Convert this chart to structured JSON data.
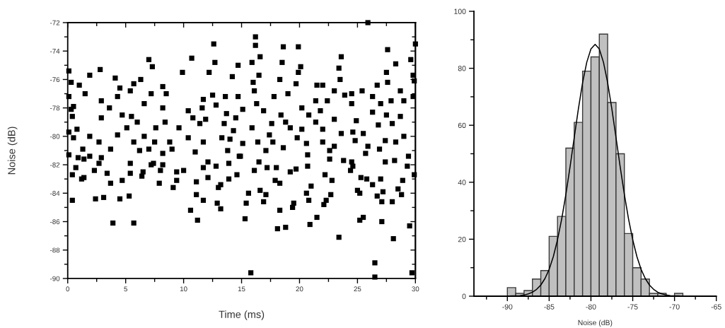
{
  "chart_data": [
    {
      "type": "scatter",
      "xlabel": "Time (ms)",
      "ylabel": "Noise (dB)",
      "color": "#000000",
      "marker": "square",
      "xlim": [
        0,
        30
      ],
      "ylim": [
        -90,
        -72
      ],
      "xticks": [
        0,
        {
          "value": 2.5,
          "label": null
        },
        5,
        {
          "value": 7.5,
          "label": null
        },
        10,
        {
          "value": 12.5,
          "label": null
        },
        15,
        {
          "value": 17.5,
          "label": null
        },
        20,
        {
          "value": 22.5,
          "label": null
        },
        25,
        {
          "value": 27.5,
          "label": null
        },
        30
      ],
      "yticks": [
        -90,
        {
          "value": -89,
          "label": null
        },
        -88,
        {
          "value": -87,
          "label": null
        },
        -86,
        {
          "value": -85,
          "label": null
        },
        -84,
        {
          "value": -83,
          "label": null
        },
        -82,
        {
          "value": -81,
          "label": null
        },
        -80,
        {
          "value": -79,
          "label": null
        },
        -78,
        {
          "value": -77,
          "label": null
        },
        -76,
        {
          "value": -75,
          "label": null
        },
        -74,
        {
          "value": -73,
          "label": null
        },
        -72
      ],
      "x": [
        0.1,
        12.6,
        12.7,
        10.7,
        7.0,
        7.3,
        2.8,
        1.9,
        4.1,
        6.3,
        5.7,
        9.9,
        12.2,
        14.7,
        14.2,
        0.3,
        1.0,
        5.4,
        4.5,
        7.2,
        8.5,
        8.2,
        12.5,
        13.6,
        0.1,
        1.5,
        2.9,
        4.3,
        0.3,
        0.5,
        3.6,
        6.6,
        8.2,
        10.4,
        11.6,
        12.8,
        11.7,
        0.4,
        0.8,
        2.9,
        4.7,
        5.5,
        4.3,
        5.1,
        6.0,
        7.6,
        8.4,
        9.6,
        10.8,
        11.4,
        11.9,
        13.5,
        14.3,
        0.1,
        0.5,
        1.9,
        2.7,
        3.7,
        1.3,
        5.7,
        6.6,
        7.5,
        8.8,
        9.0,
        10.4,
        11.7,
        13.3,
        13.8,
        6.2,
        7.0,
        8.2,
        11.0,
        1.9,
        2.9,
        0.1,
        0.9,
        5.4,
        7.4,
        12.1,
        13.9,
        14.8,
        0.4,
        0.4,
        0.7,
        1.2,
        1.4,
        1.4,
        2.3,
        2.4,
        3.1,
        2.7,
        3.4,
        3.7,
        3.9,
        4.5,
        4.7,
        5.3,
        5.4,
        5.7,
        6.4,
        6.5,
        7.2,
        7.9,
        8.0,
        8.2,
        9.1,
        9.4,
        9.4,
        10.0,
        10.6,
        11.1,
        11.1,
        11.2,
        11.7,
        11.7,
        12.1,
        12.9,
        13.0,
        13.2,
        13.2,
        13.9,
        14.6,
        12.8,
        15.8,
        15.3,
        15.4,
        15.6,
        16.1,
        16.5,
        16.6,
        16.9,
        17.1,
        17.2,
        18.0,
        18.1,
        17.9,
        18.3,
        18.3,
        18.8,
        19.2,
        19.4,
        19.5,
        19.7,
        20.6,
        20.8,
        20.7,
        20.9,
        21.0,
        21.5,
        22.1,
        22.3,
        22.2,
        22.6,
        22.7,
        22.8,
        23.4,
        24.4,
        24.6,
        25.0,
        25.2,
        25.2,
        25.5,
        25.3,
        25.8,
        26.3,
        26.5,
        26.5,
        26.7,
        27.1,
        27.1,
        27.2,
        27.0,
        28.0,
        28.1,
        28.5,
        28.8,
        28.9,
        29.5,
        29.7,
        29.9,
        29.3,
        28.2,
        27.4,
        25.9,
        30.0,
        16.2,
        16.2,
        18.6,
        19.9,
        16.6,
        15.9,
        18.5,
        20.1,
        19.9,
        18.3,
        16.5,
        16.0,
        16.1,
        23.6,
        23.4,
        23.5,
        27.6,
        28.3,
        27.5,
        29.6,
        29.8,
        29.9,
        27.6,
        26.7,
        19.7,
        21.5,
        22.0,
        23.0,
        25.4,
        28.7,
        29.8,
        14.7,
        17.8,
        19.0,
        21.4,
        22.4,
        23.9,
        24.5,
        26.3,
        27.0,
        27.9,
        29.0,
        16.3,
        16.9,
        15.1,
        13.7,
        14.5,
        18.4,
        20.2,
        20.8,
        21.8,
        23.0,
        24.5,
        24.9,
        26.3,
        27.5,
        28.7,
        15.9,
        17.6,
        18.8,
        19.2,
        20.2,
        21.4,
        22.0,
        23.6,
        24.6,
        25.5,
        26.8,
        28.0,
        17.4,
        15.1,
        14.0,
        16.4,
        17.7,
        19.8,
        20.6,
        22.0,
        23.0,
        24.8,
        25.9,
        27.4,
        28.3,
        29.0,
        29.4,
        26.9,
        25.7,
        18.6,
        17.1,
        14.9,
        20.7,
        22.6,
        23.8,
        24.5
      ],
      "values": [
        -75.4,
        -73.5,
        -74.8,
        -74.5,
        -74.6,
        -75.1,
        -75.3,
        -75.7,
        -75.9,
        -76.0,
        -76.3,
        -75.5,
        -75.5,
        -75.0,
        -75.8,
        -76.2,
        -76.4,
        -76.8,
        -76.6,
        -77.0,
        -77.0,
        -76.5,
        -77.1,
        -77.2,
        -77.2,
        -77.0,
        -77.5,
        -77.2,
        -78.1,
        -77.9,
        -78.0,
        -77.7,
        -78.0,
        -78.2,
        -78.0,
        -77.8,
        -77.4,
        -78.6,
        -79.5,
        -78.7,
        -78.5,
        -78.6,
        -79.9,
        -79.4,
        -79.0,
        -79.4,
        -79.0,
        -79.4,
        -78.7,
        -79.1,
        -78.8,
        -79.1,
        -79.6,
        -79.7,
        -80.1,
        -80.0,
        -80.4,
        -80.9,
        -80.9,
        -80.4,
        -80.0,
        -80.4,
        -80.4,
        -80.9,
        -80.1,
        -80.4,
        -80.1,
        -81.0,
        -81.0,
        -80.9,
        -81.2,
        -81.1,
        -81.4,
        -81.5,
        -81.3,
        -81.5,
        -81.9,
        -81.9,
        -81.8,
        -81.9,
        -81.4,
        -82.7,
        -84.5,
        -82.2,
        -83.0,
        -82.9,
        -81.6,
        -82.4,
        -84.4,
        -84.3,
        -81.9,
        -82.6,
        -83.3,
        -86.1,
        -84.4,
        -83.1,
        -84.2,
        -82.6,
        -86.1,
        -82.8,
        -82.5,
        -82.0,
        -83.3,
        -82.4,
        -82.0,
        -83.6,
        -83.1,
        -82.5,
        -82.4,
        -85.2,
        -83.2,
        -84.1,
        -85.9,
        -84.5,
        -82.2,
        -82.9,
        -84.7,
        -83.6,
        -85.1,
        -83.4,
        -83.0,
        -82.7,
        -82.1,
        -89.6,
        -85.8,
        -84.7,
        -84.0,
        -82.4,
        -81.8,
        -83.8,
        -84.6,
        -84.1,
        -82.2,
        -82.2,
        -86.5,
        -83.1,
        -83.3,
        -85.2,
        -86.4,
        -82.5,
        -85.0,
        -84.7,
        -82.3,
        -84.0,
        -84.5,
        -82.1,
        -86.2,
        -83.5,
        -85.7,
        -84.8,
        -84.5,
        -82.7,
        -81.6,
        -84.1,
        -83.1,
        -87.1,
        -82.4,
        -82.1,
        -83.8,
        -84.0,
        -85.9,
        -85.7,
        -82.9,
        -83.0,
        -83.4,
        -88.9,
        -89.9,
        -84.2,
        -84.6,
        -86.0,
        -83.9,
        -83.0,
        -84.6,
        -87.2,
        -83.7,
        -84.1,
        -83.1,
        -86.3,
        -89.6,
        -82.7,
        -82.1,
        -81.7,
        -81.8,
        -72.0,
        -73.5,
        -73.0,
        -73.6,
        -73.7,
        -73.7,
        -74.4,
        -74.8,
        -74.8,
        -75.1,
        -75.5,
        -76.0,
        -75.7,
        -76.2,
        -76.8,
        -74.4,
        -75.2,
        -76.0,
        -73.9,
        -74.9,
        -75.5,
        -74.6,
        -75.7,
        -76.1,
        -76.2,
        -76.4,
        -76.3,
        -76.4,
        -76.4,
        -76.8,
        -76.8,
        -76.8,
        -77.2,
        -77.2,
        -77.2,
        -77.0,
        -77.5,
        -77.5,
        -77.1,
        -77.0,
        -77.2,
        -77.7,
        -77.5,
        -77.5,
        -77.7,
        -78.2,
        -78.1,
        -78.4,
        -78.7,
        -78.5,
        -78.0,
        -78.5,
        -78.2,
        -78.8,
        -77.7,
        -78.9,
        -78.3,
        -78.5,
        -78.6,
        -79.4,
        -79.1,
        -79.0,
        -79.4,
        -79.5,
        -79.0,
        -79.5,
        -79.8,
        -79.7,
        -79.8,
        -79.2,
        -79.1,
        -79.9,
        -80.5,
        -80.2,
        -80.4,
        -80.4,
        -80.1,
        -80.5,
        -80.4,
        -80.7,
        -80.3,
        -80.7,
        -80.3,
        -80.4,
        -80.0,
        -81.4,
        -80.9,
        -81.2,
        -80.8,
        -81.0,
        -81.4,
        -81.3,
        -81.0,
        -81.7,
        -81.8
      ]
    },
    {
      "type": "histogram",
      "xlabel": "Noise (dB)",
      "color": "#c0c0c0",
      "bins": [
        -90,
        -89,
        -88,
        -87,
        -86,
        -85,
        -84,
        -83,
        -82,
        -81,
        -80,
        -79,
        -78,
        -77,
        -76,
        -75,
        -74,
        -73,
        -72,
        -71,
        -70,
        -69
      ],
      "values": [
        3,
        1,
        2,
        6,
        9,
        21,
        28,
        52,
        61,
        79,
        84,
        92,
        68,
        50,
        22,
        10,
        6,
        1,
        1,
        0,
        1
      ],
      "xlim": [
        -94,
        -65
      ],
      "ylim": [
        0,
        100
      ],
      "xticks": [
        {
          "value": -92.5,
          "label": null
        },
        -90,
        {
          "value": -87.5,
          "label": null
        },
        -85,
        {
          "value": -82.5,
          "label": null
        },
        -80,
        {
          "value": -77.5,
          "label": null
        },
        -75,
        {
          "value": -72.5,
          "label": null
        },
        -70,
        {
          "value": -67.5,
          "label": null
        },
        -65
      ],
      "yticks": [
        0,
        {
          "value": 10,
          "label": null
        },
        20,
        {
          "value": 30,
          "label": null
        },
        40,
        {
          "value": 50,
          "label": null
        },
        60,
        {
          "value": 70,
          "label": null
        },
        80,
        {
          "value": 90,
          "label": null
        },
        100
      ],
      "series": [
        {
          "type": "line",
          "color": "#000000",
          "line_style": "solid",
          "x": [
            -90,
            -89.5,
            -89,
            -88.5,
            -88,
            -87.5,
            -87,
            -86.5,
            -86,
            -85.5,
            -85,
            -84.5,
            -84,
            -83.5,
            -83,
            -82.5,
            -82,
            -81.5,
            -81,
            -80.5,
            -80,
            -79.5,
            -79,
            -78.5,
            -78,
            -77.5,
            -77,
            -76.5,
            -76,
            -75.5,
            -75,
            -74.5,
            -74,
            -73.5,
            -73,
            -72.5,
            -72,
            -71.5,
            -71,
            -70.5,
            -70,
            -69.5,
            -69
          ],
          "values": [
            0.0,
            0.1,
            0.1,
            0.2,
            0.4,
            0.8,
            1.4,
            2.4,
            3.9,
            6.2,
            9.4,
            13.9,
            19.8,
            27.1,
            35.7,
            45.4,
            55.7,
            65.8,
            74.9,
            82.1,
            86.8,
            88.4,
            86.8,
            82.1,
            74.9,
            65.8,
            55.7,
            45.4,
            35.7,
            27.1,
            19.8,
            13.9,
            9.4,
            6.2,
            3.9,
            2.4,
            1.4,
            0.8,
            0.4,
            0.2,
            0.1,
            0.1,
            0.0
          ]
        }
      ]
    }
  ]
}
